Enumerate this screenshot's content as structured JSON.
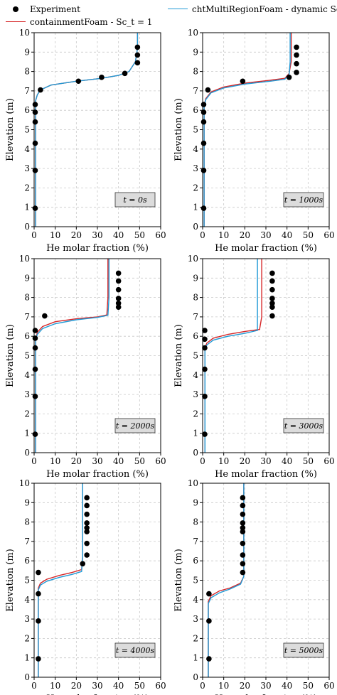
{
  "legend": {
    "experiment": "Experiment",
    "containment": "containmentFoam - Sc_t = 1",
    "chtmulti": "chtMultiRegionFoam - dynamic Sc_t"
  },
  "colors": {
    "experiment": "#000000",
    "containment": "#d62728",
    "chtmulti": "#1f9ad6",
    "grid": "#c8c8c8"
  },
  "chart_data": [
    {
      "type": "line",
      "label": "t = 0s",
      "xlabel": "He molar fraction (%)",
      "ylabel": "Elevation (m)",
      "xlim": [
        0,
        60
      ],
      "ylim": [
        0,
        10
      ],
      "xticks": [
        0,
        10,
        20,
        30,
        40,
        50,
        60
      ],
      "yticks": [
        0,
        1,
        2,
        3,
        4,
        5,
        6,
        7,
        8,
        9,
        10
      ],
      "grid": true,
      "experiment": [
        [
          0.5,
          0.95
        ],
        [
          0.5,
          2.9
        ],
        [
          0.5,
          4.3
        ],
        [
          0.5,
          5.4
        ],
        [
          0.5,
          5.9
        ],
        [
          0.5,
          6.3
        ],
        [
          3,
          7.05
        ],
        [
          21,
          7.5
        ],
        [
          32,
          7.7
        ],
        [
          43,
          7.9
        ],
        [
          49,
          8.45
        ],
        [
          49,
          8.85
        ],
        [
          49,
          9.25
        ]
      ],
      "containment": [
        [
          0.7,
          0
        ],
        [
          0.7,
          6.5
        ],
        [
          1.5,
          6.8
        ],
        [
          3,
          7.05
        ],
        [
          8,
          7.3
        ],
        [
          20,
          7.5
        ],
        [
          32,
          7.65
        ],
        [
          40,
          7.8
        ],
        [
          45,
          8.0
        ],
        [
          48,
          8.5
        ],
        [
          49,
          9.2
        ],
        [
          49,
          10
        ]
      ],
      "chtmulti": [
        [
          0.7,
          0
        ],
        [
          0.7,
          6.5
        ],
        [
          1.5,
          6.8
        ],
        [
          3,
          7.05
        ],
        [
          8,
          7.3
        ],
        [
          20,
          7.5
        ],
        [
          32,
          7.65
        ],
        [
          40,
          7.8
        ],
        [
          45,
          8.0
        ],
        [
          48,
          8.5
        ],
        [
          49,
          9.2
        ],
        [
          49,
          10
        ]
      ]
    },
    {
      "type": "line",
      "label": "t = 1000s",
      "xlabel": "He molar fraction (%)",
      "ylabel": "Elevation (m)",
      "xlim": [
        0,
        60
      ],
      "ylim": [
        0,
        10
      ],
      "xticks": [
        0,
        10,
        20,
        30,
        40,
        50,
        60
      ],
      "yticks": [
        0,
        1,
        2,
        3,
        4,
        5,
        6,
        7,
        8,
        9,
        10
      ],
      "grid": true,
      "experiment": [
        [
          0.5,
          0.95
        ],
        [
          0.5,
          2.9
        ],
        [
          0.5,
          4.3
        ],
        [
          0.5,
          5.4
        ],
        [
          0.5,
          5.9
        ],
        [
          0.5,
          6.3
        ],
        [
          2.5,
          7.05
        ],
        [
          19,
          7.5
        ],
        [
          41,
          7.7
        ],
        [
          44.5,
          7.95
        ],
        [
          44.5,
          8.4
        ],
        [
          44.5,
          8.85
        ],
        [
          44.5,
          9.25
        ]
      ],
      "containment": [
        [
          0.7,
          0
        ],
        [
          0.7,
          6.2
        ],
        [
          1.5,
          6.6
        ],
        [
          4,
          6.95
        ],
        [
          10,
          7.2
        ],
        [
          20,
          7.4
        ],
        [
          32,
          7.55
        ],
        [
          39,
          7.65
        ],
        [
          41,
          7.9
        ],
        [
          42,
          8.5
        ],
        [
          42,
          10
        ]
      ],
      "chtmulti": [
        [
          0.7,
          0
        ],
        [
          0.7,
          6.2
        ],
        [
          1.5,
          6.55
        ],
        [
          4,
          6.9
        ],
        [
          10,
          7.15
        ],
        [
          20,
          7.35
        ],
        [
          32,
          7.5
        ],
        [
          39,
          7.6
        ],
        [
          41,
          7.85
        ],
        [
          41.5,
          8.5
        ],
        [
          41.5,
          10
        ]
      ]
    },
    {
      "type": "line",
      "label": "t = 2000s",
      "xlabel": "He molar fraction (%)",
      "ylabel": "Elevation (m)",
      "xlim": [
        0,
        60
      ],
      "ylim": [
        0,
        10
      ],
      "xticks": [
        0,
        10,
        20,
        30,
        40,
        50,
        60
      ],
      "yticks": [
        0,
        1,
        2,
        3,
        4,
        5,
        6,
        7,
        8,
        9,
        10
      ],
      "grid": true,
      "experiment": [
        [
          0.5,
          0.95
        ],
        [
          0.5,
          2.9
        ],
        [
          0.5,
          4.3
        ],
        [
          0.5,
          5.4
        ],
        [
          0.5,
          5.9
        ],
        [
          0.5,
          6.3
        ],
        [
          5,
          7.05
        ],
        [
          40,
          7.5
        ],
        [
          40,
          7.7
        ],
        [
          40,
          7.95
        ],
        [
          40,
          8.4
        ],
        [
          40,
          8.85
        ],
        [
          40,
          9.25
        ]
      ],
      "containment": [
        [
          0.7,
          0
        ],
        [
          0.7,
          5.8
        ],
        [
          1.5,
          6.2
        ],
        [
          4,
          6.5
        ],
        [
          10,
          6.75
        ],
        [
          20,
          6.9
        ],
        [
          30,
          7.0
        ],
        [
          34.5,
          7.1
        ],
        [
          35,
          8
        ],
        [
          35,
          10
        ]
      ],
      "chtmulti": [
        [
          0.7,
          0
        ],
        [
          0.7,
          5.8
        ],
        [
          1.5,
          6.1
        ],
        [
          4,
          6.4
        ],
        [
          10,
          6.65
        ],
        [
          20,
          6.85
        ],
        [
          30,
          6.97
        ],
        [
          35,
          7.08
        ],
        [
          35.5,
          8
        ],
        [
          35.5,
          10
        ]
      ]
    },
    {
      "type": "line",
      "label": "t = 3000s",
      "xlabel": "He molar fraction (%)",
      "ylabel": "Elevation (m)",
      "xlim": [
        0,
        60
      ],
      "ylim": [
        0,
        10
      ],
      "xticks": [
        0,
        10,
        20,
        30,
        40,
        50,
        60
      ],
      "yticks": [
        0,
        1,
        2,
        3,
        4,
        5,
        6,
        7,
        8,
        9,
        10
      ],
      "grid": true,
      "experiment": [
        [
          1,
          0.95
        ],
        [
          1,
          2.9
        ],
        [
          1,
          4.3
        ],
        [
          1,
          5.4
        ],
        [
          1,
          5.85
        ],
        [
          1,
          6.3
        ],
        [
          33,
          7.05
        ],
        [
          33,
          7.5
        ],
        [
          33,
          7.7
        ],
        [
          33,
          7.95
        ],
        [
          33,
          8.4
        ],
        [
          33,
          8.85
        ],
        [
          33,
          9.25
        ]
      ],
      "containment": [
        [
          1.1,
          0
        ],
        [
          1.1,
          5.4
        ],
        [
          2,
          5.65
        ],
        [
          5,
          5.9
        ],
        [
          12,
          6.1
        ],
        [
          20,
          6.25
        ],
        [
          27,
          6.35
        ],
        [
          28,
          7
        ],
        [
          28,
          10
        ]
      ],
      "chtmulti": [
        [
          1.1,
          0
        ],
        [
          1.1,
          5.3
        ],
        [
          2,
          5.55
        ],
        [
          5,
          5.8
        ],
        [
          12,
          6.0
        ],
        [
          20,
          6.15
        ],
        [
          26,
          6.3
        ],
        [
          26,
          7
        ],
        [
          26,
          10
        ]
      ]
    },
    {
      "type": "line",
      "label": "t = 4000s",
      "xlabel": "He molar fraction (%)",
      "ylabel": "Elevation (m)",
      "xlim": [
        0,
        60
      ],
      "ylim": [
        0,
        10
      ],
      "xticks": [
        0,
        10,
        20,
        30,
        40,
        50,
        60
      ],
      "yticks": [
        0,
        1,
        2,
        3,
        4,
        5,
        6,
        7,
        8,
        9,
        10
      ],
      "grid": true,
      "experiment": [
        [
          2,
          0.95
        ],
        [
          2,
          2.9
        ],
        [
          2,
          4.3
        ],
        [
          2,
          5.4
        ],
        [
          23,
          5.85
        ],
        [
          25,
          6.3
        ],
        [
          25,
          6.9
        ],
        [
          25,
          7.5
        ],
        [
          25,
          7.7
        ],
        [
          25,
          7.95
        ],
        [
          25,
          8.4
        ],
        [
          25,
          8.85
        ],
        [
          25,
          9.25
        ]
      ],
      "containment": [
        [
          2,
          0
        ],
        [
          2,
          4.6
        ],
        [
          3,
          4.85
        ],
        [
          6,
          5.05
        ],
        [
          12,
          5.25
        ],
        [
          18,
          5.4
        ],
        [
          22.5,
          5.55
        ],
        [
          23,
          6.2
        ],
        [
          23,
          10
        ]
      ],
      "chtmulti": [
        [
          2,
          0
        ],
        [
          2,
          4.5
        ],
        [
          3,
          4.75
        ],
        [
          6,
          4.95
        ],
        [
          12,
          5.15
        ],
        [
          18,
          5.3
        ],
        [
          22.5,
          5.45
        ],
        [
          23,
          6.2
        ],
        [
          23,
          10
        ]
      ]
    },
    {
      "type": "line",
      "label": "t = 5000s",
      "xlabel": "He molar fraction (%)",
      "ylabel": "Elevation (m)",
      "xlim": [
        0,
        60
      ],
      "ylim": [
        0,
        10
      ],
      "xticks": [
        0,
        10,
        20,
        30,
        40,
        50,
        60
      ],
      "yticks": [
        0,
        1,
        2,
        3,
        4,
        5,
        6,
        7,
        8,
        9,
        10
      ],
      "grid": true,
      "experiment": [
        [
          3,
          0.95
        ],
        [
          3,
          2.9
        ],
        [
          3,
          4.3
        ],
        [
          19,
          5.4
        ],
        [
          19,
          5.85
        ],
        [
          19,
          6.3
        ],
        [
          19,
          6.9
        ],
        [
          19,
          7.5
        ],
        [
          19,
          7.7
        ],
        [
          19,
          7.95
        ],
        [
          19,
          8.4
        ],
        [
          19,
          8.85
        ],
        [
          19,
          9.25
        ]
      ],
      "containment": [
        [
          2.7,
          0
        ],
        [
          2.7,
          3.9
        ],
        [
          4,
          4.2
        ],
        [
          8,
          4.45
        ],
        [
          13,
          4.6
        ],
        [
          18,
          4.85
        ],
        [
          19.5,
          5.2
        ],
        [
          19.5,
          10
        ]
      ],
      "chtmulti": [
        [
          2.7,
          0
        ],
        [
          2.7,
          3.8
        ],
        [
          4,
          4.1
        ],
        [
          8,
          4.35
        ],
        [
          13,
          4.55
        ],
        [
          18,
          4.8
        ],
        [
          19.5,
          5.2
        ],
        [
          19.5,
          10
        ]
      ]
    }
  ]
}
